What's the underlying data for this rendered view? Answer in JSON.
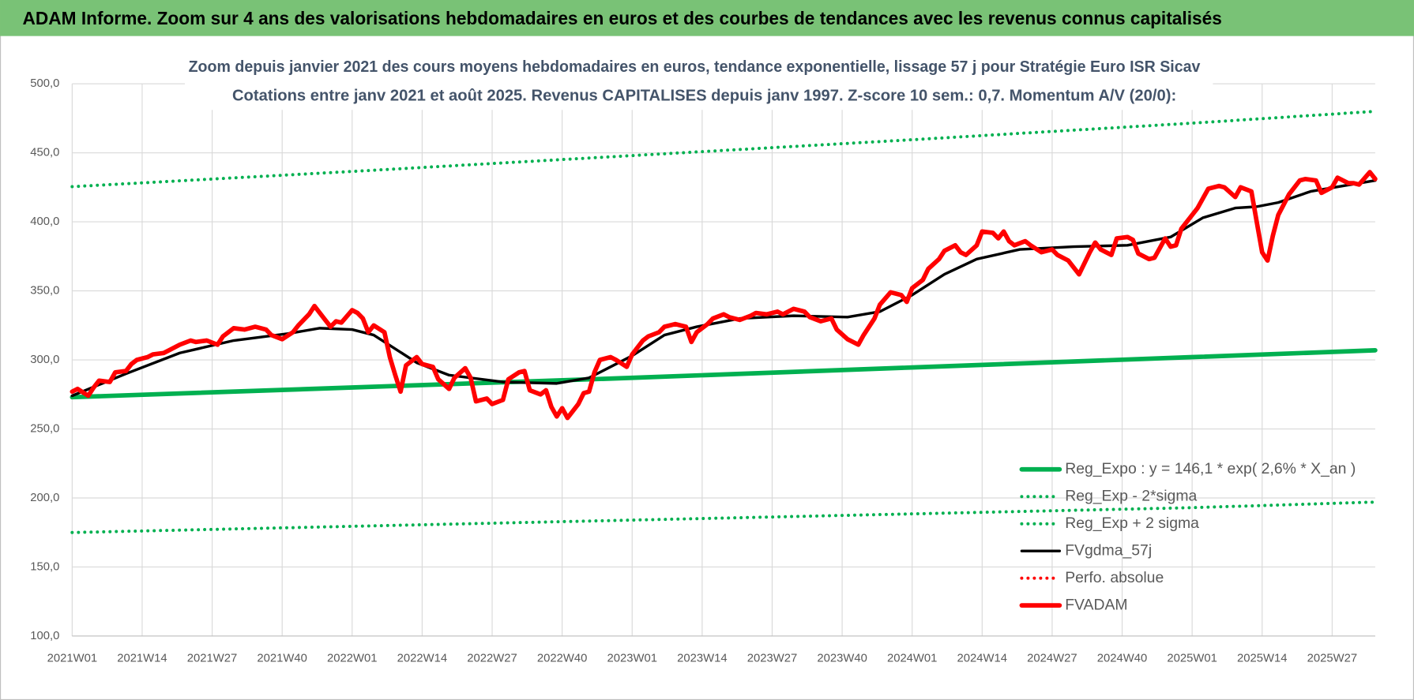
{
  "header": {
    "title": "ADAM Informe. Zoom sur 4 ans des valorisations hebdomadaires en euros et des courbes de tendances avec les revenus connus capitalisés"
  },
  "chart_data": {
    "type": "line",
    "title": "Zoom depuis janvier 2021 des cours moyens hebdomadaires en euros, tendance exponentielle, lissage 57 j pour Stratégie Euro ISR Sicav",
    "subtitle": "Cotations entre janv 2021 et août 2025. Revenus CAPITALISES depuis janv 1997. Z-score 10 sem.: 0,7. Momentum A/V (20/0):",
    "xlim": [
      0,
      242
    ],
    "xticks": [
      {
        "value": 0,
        "label": "2021W01"
      },
      {
        "value": 13,
        "label": "2021W14"
      },
      {
        "value": 26,
        "label": "2021W27"
      },
      {
        "value": 39,
        "label": "2021W40"
      },
      {
        "value": 52,
        "label": "2022W01"
      },
      {
        "value": 65,
        "label": "2022W14"
      },
      {
        "value": 78,
        "label": "2022W27"
      },
      {
        "value": 91,
        "label": "2022W40"
      },
      {
        "value": 104,
        "label": "2023W01"
      },
      {
        "value": 117,
        "label": "2023W14"
      },
      {
        "value": 130,
        "label": "2023W27"
      },
      {
        "value": 143,
        "label": "2023W40"
      },
      {
        "value": 156,
        "label": "2024W01"
      },
      {
        "value": 169,
        "label": "2024W14"
      },
      {
        "value": 182,
        "label": "2024W27"
      },
      {
        "value": 195,
        "label": "2024W40"
      },
      {
        "value": 208,
        "label": "2025W01"
      },
      {
        "value": 221,
        "label": "2025W14"
      },
      {
        "value": 234,
        "label": "2025W27"
      }
    ],
    "ylim": [
      100,
      500
    ],
    "yticks": [
      {
        "value": 100,
        "label": "100,0"
      },
      {
        "value": 150,
        "label": "150,0"
      },
      {
        "value": 200,
        "label": "200,0"
      },
      {
        "value": 250,
        "label": "250,0"
      },
      {
        "value": 300,
        "label": "300,0"
      },
      {
        "value": 350,
        "label": "350,0"
      },
      {
        "value": 400,
        "label": "400,0"
      },
      {
        "value": 450,
        "label": "450,0"
      },
      {
        "value": 500,
        "label": "500,0"
      }
    ],
    "grid": true,
    "legend": "lower right",
    "series": [
      {
        "name": "Reg_Expo : y = 146,1 * exp( 2,6% *  X_an )",
        "color": "#00b050",
        "dotted": false,
        "line_width": 5,
        "x": [
          0,
          52,
          104,
          156,
          208,
          242
        ],
        "values": [
          273,
          280,
          287,
          294.5,
          302,
          307
        ]
      },
      {
        "name": "Reg_Exp - 2*sigma",
        "color": "#00b050",
        "dotted": true,
        "line_width": 3.5,
        "x": [
          0,
          52,
          104,
          156,
          208,
          242
        ],
        "values": [
          175,
          179.5,
          184,
          188.5,
          193,
          197
        ]
      },
      {
        "name": "Reg_Exp + 2 sigma",
        "color": "#00b050",
        "dotted": true,
        "line_width": 3.5,
        "x": [
          0,
          52,
          104,
          156,
          208,
          242
        ],
        "values": [
          425.5,
          436.5,
          448,
          459.5,
          471.5,
          480
        ]
      },
      {
        "name": "FVgdma_57j",
        "color": "#000000",
        "dotted": false,
        "line_width": 3,
        "x": [
          0,
          10,
          20,
          30,
          40,
          46,
          52,
          56,
          60,
          64,
          70,
          80,
          90,
          96,
          104,
          110,
          116,
          124,
          134,
          144,
          150,
          156,
          162,
          168,
          176,
          186,
          196,
          204,
          210,
          216,
          220,
          224,
          230,
          236,
          242
        ],
        "values": [
          274,
          290,
          305,
          314,
          319,
          323,
          322,
          318,
          308,
          298,
          289,
          284,
          283,
          287,
          303,
          318,
          324,
          330,
          332,
          331,
          335,
          347,
          362,
          373,
          380,
          382,
          383,
          389,
          403,
          410,
          411,
          414,
          422,
          426,
          430
        ]
      },
      {
        "name": "Perfo. absolue",
        "color": "#ff0000",
        "dotted": true,
        "line_width": 3.5
      },
      {
        "name": "FVADAM",
        "color": "#ff0000",
        "dotted": false,
        "line_width": 5,
        "x": [
          0,
          1,
          3,
          4,
          5,
          7,
          8,
          10,
          11,
          12,
          14,
          15,
          17,
          18,
          20,
          22,
          23,
          25,
          27,
          28,
          30,
          32,
          34,
          36,
          37,
          39,
          41,
          42,
          44,
          45,
          47,
          48,
          49,
          50,
          52,
          53,
          54,
          55,
          56,
          58,
          59,
          60,
          61,
          62,
          64,
          65,
          67,
          68,
          70,
          71,
          73,
          74,
          75,
          77,
          78,
          80,
          81,
          83,
          84,
          85,
          87,
          88,
          89,
          90,
          91,
          92,
          94,
          95,
          96,
          97,
          98,
          100,
          101,
          103,
          104,
          106,
          107,
          109,
          110,
          112,
          114,
          115,
          116,
          118,
          119,
          121,
          122,
          124,
          126,
          127,
          129,
          131,
          132,
          134,
          136,
          137,
          139,
          141,
          142,
          144,
          146,
          147,
          149,
          150,
          152,
          154,
          155,
          156,
          158,
          159,
          161,
          162,
          164,
          165,
          166,
          168,
          169,
          171,
          172,
          173,
          174,
          175,
          177,
          178,
          180,
          182,
          183,
          185,
          187,
          189,
          190,
          191,
          193,
          194,
          196,
          197,
          198,
          200,
          201,
          203,
          204,
          205,
          206,
          208,
          209,
          211,
          213,
          214,
          216,
          217,
          219,
          220,
          221,
          222,
          223,
          224,
          226,
          228,
          229,
          231,
          232,
          234,
          235,
          237,
          238,
          239,
          241,
          242
        ],
        "values": [
          277,
          279,
          274,
          280,
          285,
          284,
          291,
          292,
          297,
          300,
          302,
          304,
          305,
          307,
          311,
          314,
          313,
          314,
          311,
          317,
          323,
          322,
          324,
          322,
          318,
          315,
          320,
          325,
          333,
          339,
          329,
          324,
          328,
          327,
          336,
          334,
          330,
          320,
          325,
          320,
          302,
          289,
          277,
          296,
          302,
          297,
          295,
          286,
          279,
          287,
          294,
          287,
          270,
          272,
          268,
          271,
          286,
          291,
          292,
          278,
          275,
          278,
          266,
          259,
          265,
          258,
          268,
          276,
          277,
          291,
          300,
          302,
          300,
          295,
          304,
          314,
          317,
          320,
          324,
          326,
          324,
          313,
          320,
          326,
          330,
          333,
          331,
          329,
          332,
          334,
          333,
          335,
          333,
          337,
          335,
          331,
          328,
          330,
          322,
          315,
          311,
          318,
          330,
          340,
          349,
          347,
          342,
          352,
          358,
          366,
          373,
          379,
          383,
          378,
          376,
          383,
          393,
          392,
          388,
          393,
          386,
          383,
          386,
          383,
          378,
          380,
          376,
          372,
          362,
          378,
          385,
          380,
          376,
          388,
          389,
          387,
          377,
          373,
          374,
          388,
          382,
          383,
          395,
          405,
          410,
          424,
          426,
          425,
          418,
          425,
          422,
          400,
          378,
          372,
          390,
          405,
          420,
          430,
          431,
          430,
          421,
          425,
          432,
          428,
          428,
          427,
          436,
          431
        ]
      }
    ]
  }
}
